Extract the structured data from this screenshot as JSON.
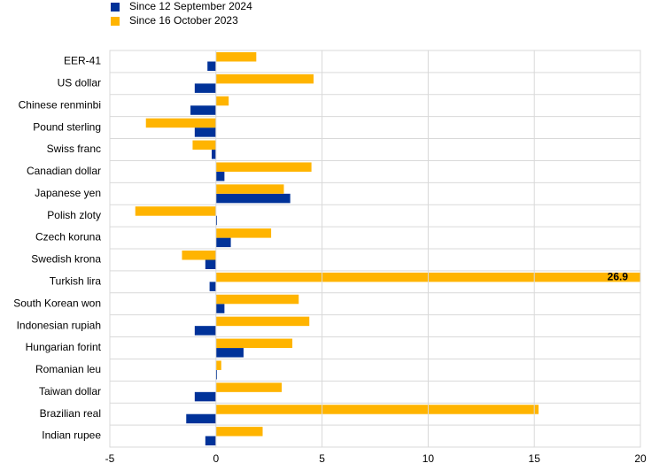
{
  "chart_data": {
    "type": "hbar",
    "categories": [
      "EER-41",
      "US dollar",
      "Chinese renminbi",
      "Pound sterling",
      "Swiss franc",
      "Canadian dollar",
      "Japanese yen",
      "Polish zloty",
      "Czech koruna",
      "Swedish krona",
      "Turkish lira",
      "South Korean won",
      "Indonesian rupiah",
      "Hungarian forint",
      "Romanian leu",
      "Taiwan dollar",
      "Brazilian real",
      "Indian rupee"
    ],
    "series": [
      {
        "name": "Since 12 September 2024",
        "color": "#003299",
        "values": [
          -0.4,
          -1.0,
          -1.2,
          -1.0,
          -0.2,
          0.4,
          3.5,
          0.05,
          0.7,
          -0.5,
          -0.3,
          0.4,
          -1.0,
          1.3,
          0.05,
          -1.0,
          -1.4,
          -0.5
        ]
      },
      {
        "name": "Since 16 October 2023",
        "color": "#ffb400",
        "values": [
          1.9,
          4.6,
          0.6,
          -3.3,
          -1.1,
          4.5,
          3.2,
          -3.8,
          2.6,
          -1.6,
          26.9,
          3.9,
          4.4,
          3.6,
          0.25,
          3.1,
          15.2,
          2.2
        ],
        "value_labels": [
          null,
          null,
          null,
          null,
          null,
          null,
          null,
          null,
          null,
          null,
          "26.9",
          null,
          null,
          null,
          null,
          null,
          null,
          null
        ]
      }
    ],
    "xlim": [
      -5,
      20
    ],
    "xticks": [
      -5,
      0,
      5,
      10,
      15,
      20
    ],
    "grid": true,
    "legend": "top-left"
  }
}
